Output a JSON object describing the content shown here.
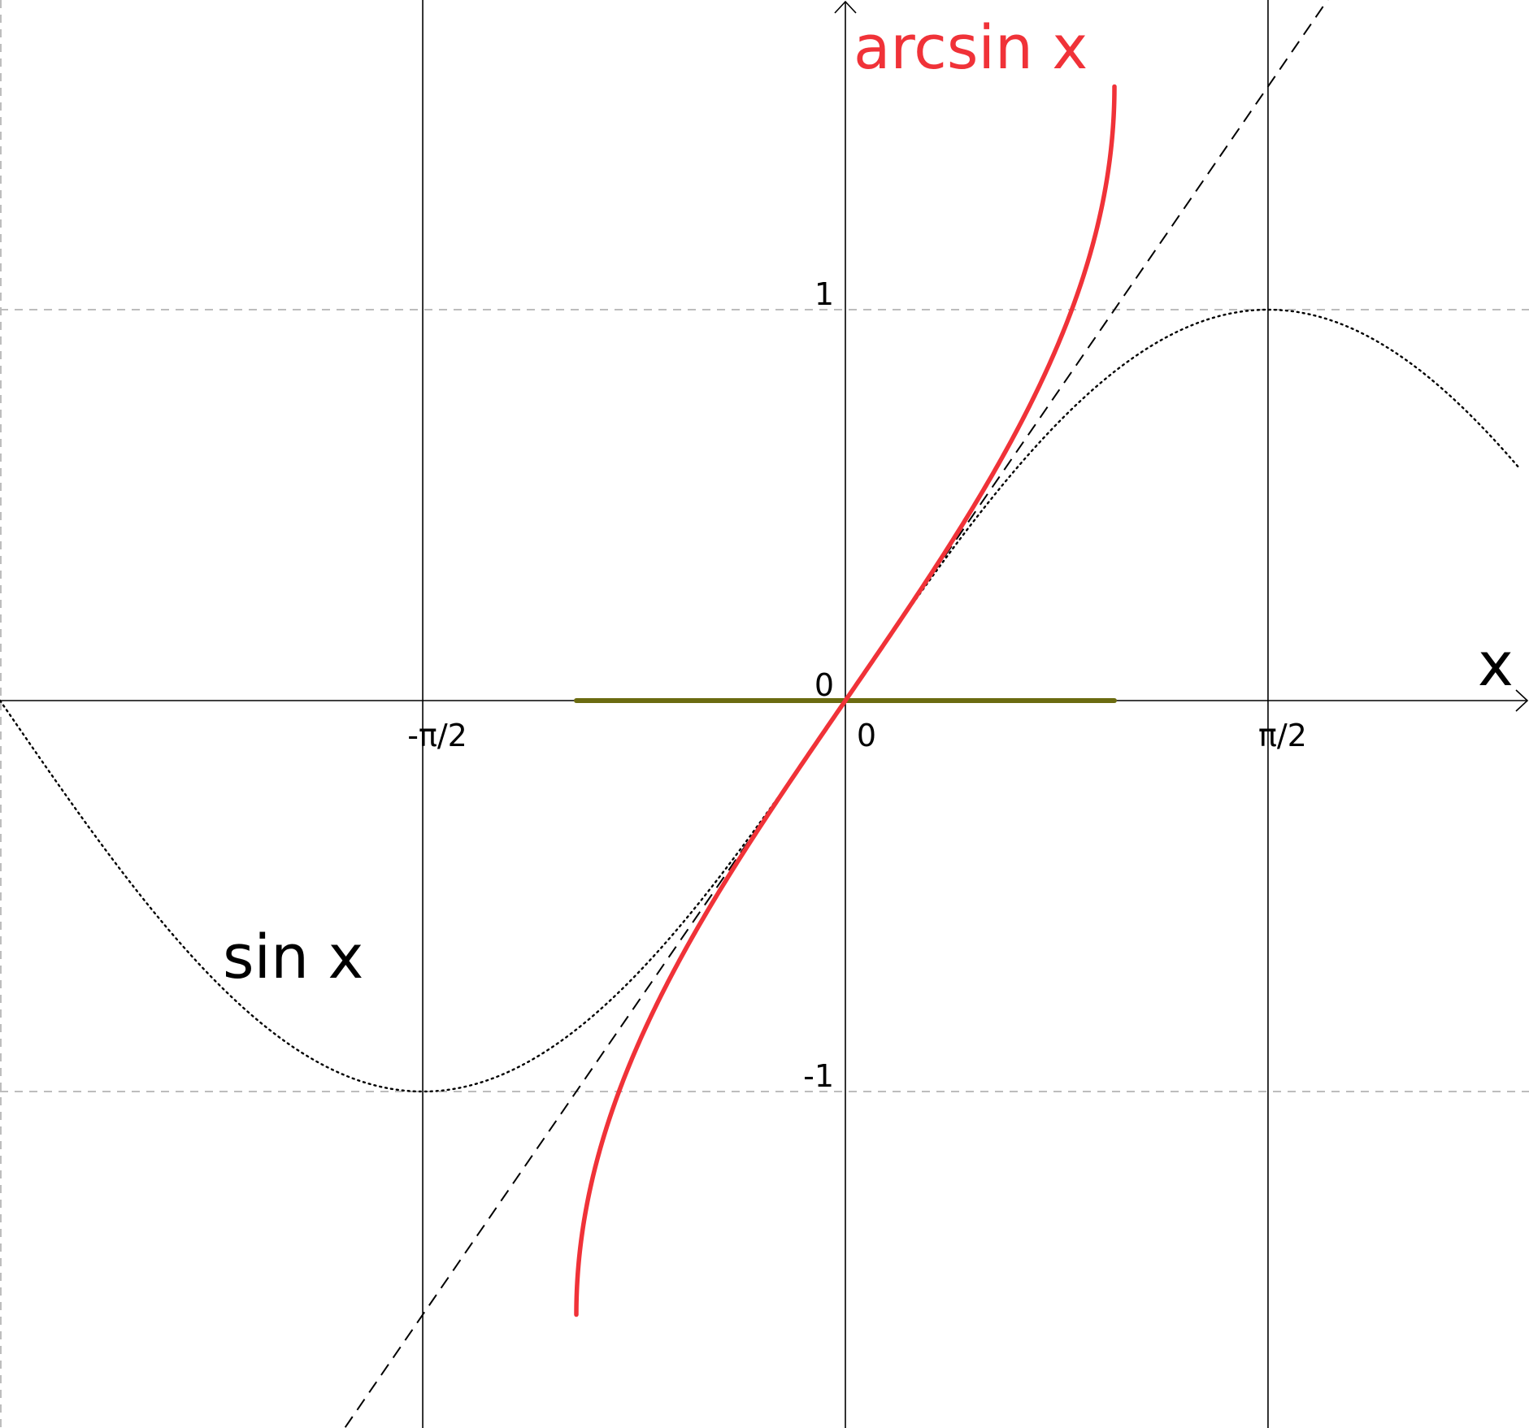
{
  "chart_data": {
    "type": "line",
    "xlim": [
      -1.5708,
      1.2024
    ],
    "ylim": [
      -1.859,
      1.7913
    ],
    "x_axis_label": "x",
    "x_ticks": [
      {
        "value": -1.5708,
        "label": "-π/2"
      },
      {
        "value": 0,
        "label": "0"
      },
      {
        "value": 1.5708,
        "label": "π/2"
      }
    ],
    "y_ticks": [
      {
        "value": 1,
        "label": "1"
      },
      {
        "value": 0,
        "label": "0"
      },
      {
        "value": -1,
        "label": "-1"
      }
    ],
    "grid": {
      "vertical": "solid",
      "horizontal": "dashed"
    },
    "series": [
      {
        "name": "arcsin x",
        "function": "arcsin",
        "domain": [
          -1,
          1
        ],
        "color": "#f03238",
        "style": "solid",
        "label_position": "top-center",
        "points": [
          [
            -1.0,
            -1.5708
          ],
          [
            -0.99,
            -1.4293
          ],
          [
            -0.95,
            -1.2532
          ],
          [
            -0.9,
            -1.1198
          ],
          [
            -0.8,
            -0.9273
          ],
          [
            -0.6,
            -0.6435
          ],
          [
            -0.4,
            -0.4115
          ],
          [
            -0.2,
            -0.2014
          ],
          [
            0,
            0
          ],
          [
            0.2,
            0.2014
          ],
          [
            0.4,
            0.4115
          ],
          [
            0.6,
            0.6435
          ],
          [
            0.8,
            0.9273
          ],
          [
            0.9,
            1.1198
          ],
          [
            0.95,
            1.2532
          ],
          [
            0.99,
            1.4293
          ],
          [
            1.0,
            1.5708
          ]
        ]
      },
      {
        "name": "sin x",
        "function": "sin",
        "domain": [
          -3.1416,
          2.5
        ]
      },
      {
        "function": "identity",
        "domain": [
          -1.859,
          1.8
        ],
        "style": "dashed"
      }
    ],
    "segment": {
      "x": [
        -1,
        1
      ],
      "y": 0,
      "color": "#6b6b10"
    },
    "colors": {
      "arcsin": "#f03238",
      "segment": "#6b6b10",
      "grid_h": "#bdbdbd",
      "axes": "#000000"
    }
  }
}
